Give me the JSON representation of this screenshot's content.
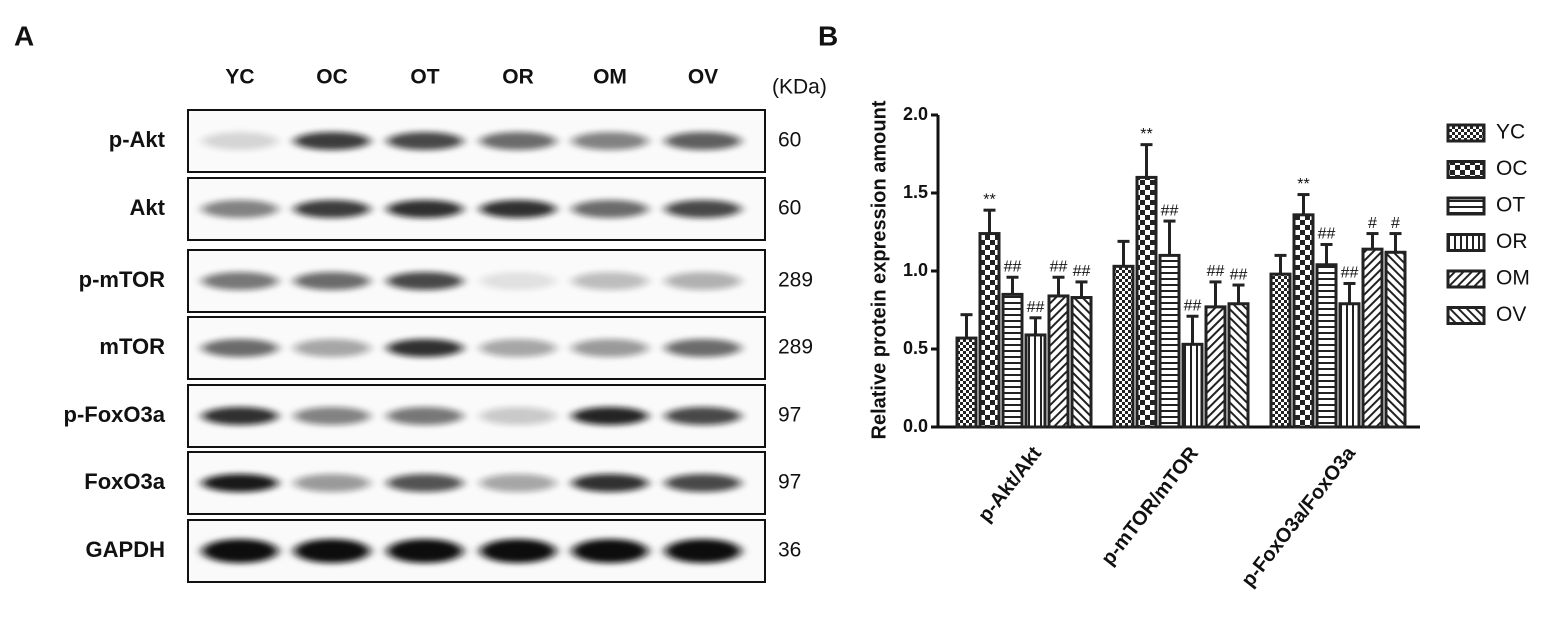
{
  "panel_a": {
    "label": "A",
    "lanes": [
      "YC",
      "OC",
      "OT",
      "OR",
      "OM",
      "OV"
    ],
    "unit": "(KDa)",
    "rows": [
      {
        "protein": "p-Akt",
        "kda": 60
      },
      {
        "protein": "Akt",
        "kda": 60
      },
      {
        "protein": "p-mTOR",
        "kda": 289
      },
      {
        "protein": "mTOR",
        "kda": 289
      },
      {
        "protein": "p-FoxO3a",
        "kda": 97
      },
      {
        "protein": "FoxO3a",
        "kda": 97
      },
      {
        "protein": "GAPDH",
        "kda": 36
      }
    ]
  },
  "panel_b": {
    "label": "B"
  },
  "chart_data": {
    "type": "bar",
    "ylabel": "Relative protein expression amount",
    "categories": [
      "p-Akt/Akt",
      "p-mTOR/mTOR",
      "p-FoxO3a/FoxO3a"
    ],
    "ylim": [
      0,
      2
    ],
    "yticks": [
      {
        "value": 0,
        "label": "0.0"
      },
      {
        "value": 0.5,
        "label": "0.5"
      },
      {
        "value": 1,
        "label": "1.0"
      },
      {
        "value": 1.5,
        "label": "1.5"
      },
      {
        "value": 2,
        "label": "2.0"
      }
    ],
    "legend": "right",
    "series": [
      {
        "name": "YC",
        "color": "#222222",
        "pattern": "checker-small",
        "values": [
          0.57,
          1.03,
          0.98
        ],
        "errors": [
          0.15,
          0.16,
          0.12
        ],
        "annotations": [
          null,
          null,
          null
        ]
      },
      {
        "name": "OC",
        "color": "#222222",
        "pattern": "checker-large",
        "values": [
          1.24,
          1.6,
          1.36
        ],
        "errors": [
          0.15,
          0.21,
          0.13
        ],
        "annotations": [
          "**",
          "**",
          "**"
        ]
      },
      {
        "name": "OT",
        "color": "#222222",
        "pattern": "horizontal",
        "values": [
          0.85,
          1.1,
          1.04
        ],
        "errors": [
          0.11,
          0.22,
          0.13
        ],
        "annotations": [
          "##",
          "##",
          "##"
        ]
      },
      {
        "name": "OR",
        "color": "#222222",
        "pattern": "vertical",
        "values": [
          0.59,
          0.53,
          0.79
        ],
        "errors": [
          0.11,
          0.18,
          0.13
        ],
        "annotations": [
          "##",
          "##",
          "##"
        ]
      },
      {
        "name": "OM",
        "color": "#222222",
        "pattern": "diag-right",
        "values": [
          0.84,
          0.77,
          1.14
        ],
        "errors": [
          0.12,
          0.16,
          0.1
        ],
        "annotations": [
          "##",
          "##",
          "#"
        ]
      },
      {
        "name": "OV",
        "color": "#222222",
        "pattern": "diag-left",
        "values": [
          0.83,
          0.79,
          1.12
        ],
        "errors": [
          0.1,
          0.12,
          0.12
        ],
        "annotations": [
          "##",
          "##",
          "#"
        ]
      }
    ]
  }
}
